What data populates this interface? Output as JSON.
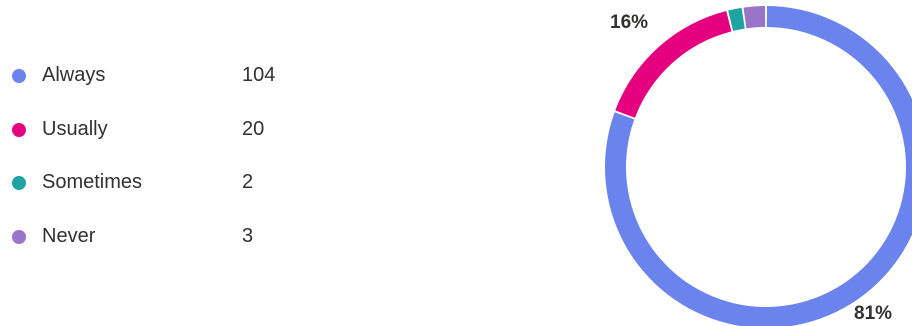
{
  "chart_data": {
    "type": "pie",
    "donut": true,
    "legend_placement": "left",
    "categories": [
      "Always",
      "Usually",
      "Sometimes",
      "Never"
    ],
    "values": [
      104,
      20,
      2,
      3
    ],
    "colors": [
      "#6b83ec",
      "#e4007f",
      "#1fa3a3",
      "#9a74c9"
    ],
    "slice_labels": [
      "81%",
      "16%",
      "",
      ""
    ]
  }
}
